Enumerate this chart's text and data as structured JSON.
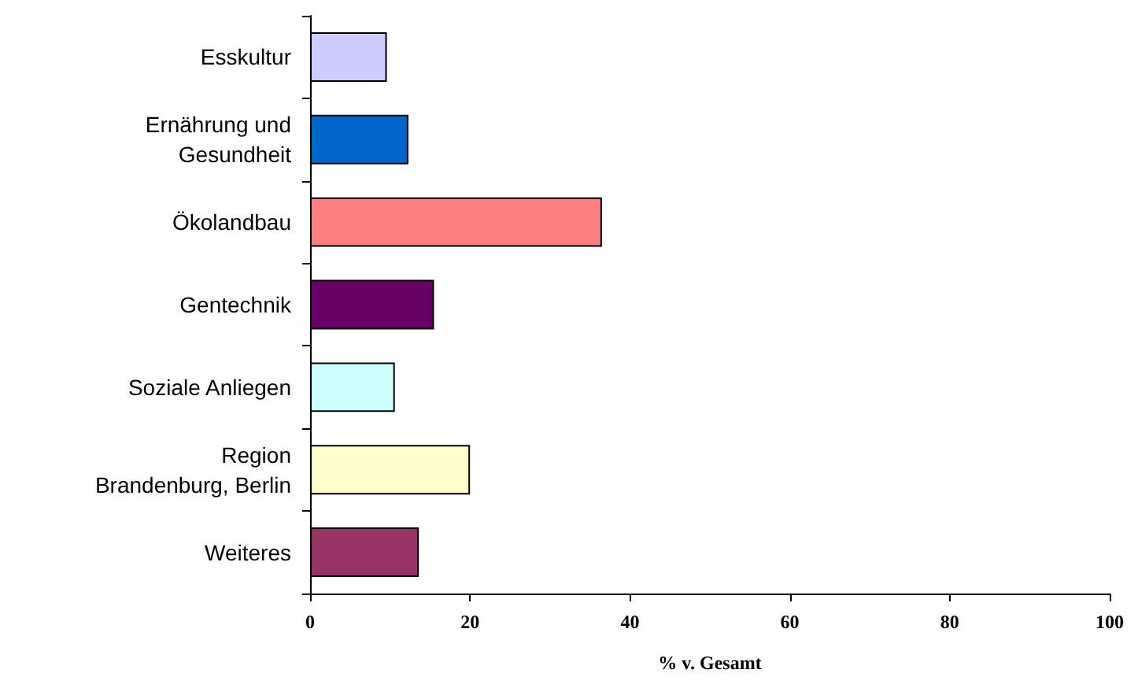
{
  "chart_data": {
    "type": "bar",
    "orientation": "horizontal",
    "xlabel": "% v. Gesamt",
    "categories": [
      "Esskultur",
      "Ernährung und\nGesundheit",
      "Ökolandbau",
      "Gentechnik",
      "Soziale Anliegen",
      "Region\nBrandenburg, Berlin",
      "Weiteres"
    ],
    "values": [
      9.6,
      12.3,
      36.5,
      15.5,
      10.6,
      20.0,
      13.6
    ],
    "colors": [
      "#ccccff",
      "#0066cc",
      "#ff8080",
      "#660066",
      "#ccffff",
      "#ffffcc",
      "#993366"
    ],
    "xlim": [
      0,
      100
    ],
    "xticks": [
      0,
      20,
      40,
      60,
      80,
      100
    ],
    "grid": false
  }
}
